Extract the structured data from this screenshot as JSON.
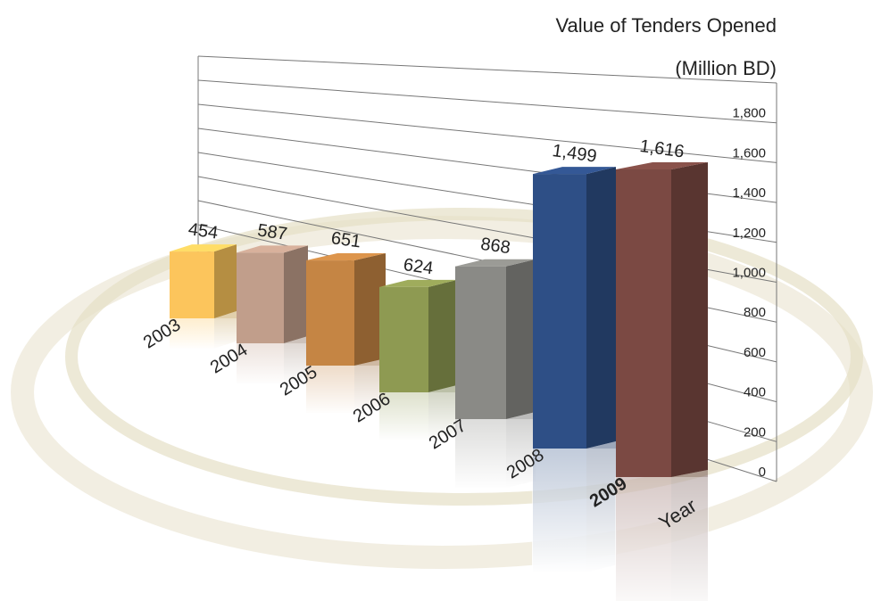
{
  "chart_data": {
    "type": "bar",
    "title": "Value of Tenders Opened",
    "subtitle": "(Million BD)",
    "x_label": "Year",
    "categories": [
      "2003",
      "2004",
      "2005",
      "2006",
      "2007",
      "2008",
      "2009"
    ],
    "values": [
      454,
      587,
      651,
      624,
      868,
      1499,
      1616
    ],
    "value_labels": [
      "454",
      "587",
      "651",
      "624",
      "868",
      "1,499",
      "1,616"
    ],
    "colors": [
      "#fcc55c",
      "#c19e8b",
      "#c58544",
      "#8e9a52",
      "#8a8a86",
      "#2e4f86",
      "#7b4943"
    ],
    "ylim": [
      0,
      2000
    ],
    "yticks": [
      0,
      200,
      400,
      600,
      800,
      {
        "value": 1000,
        "label": "1,000"
      },
      {
        "value": 1200,
        "label": "1,200"
      },
      {
        "value": 1400,
        "label": "1,400"
      },
      {
        "value": 1600,
        "label": "1,600"
      },
      {
        "value": 1800,
        "label": "1,800"
      }
    ],
    "grid": true
  }
}
